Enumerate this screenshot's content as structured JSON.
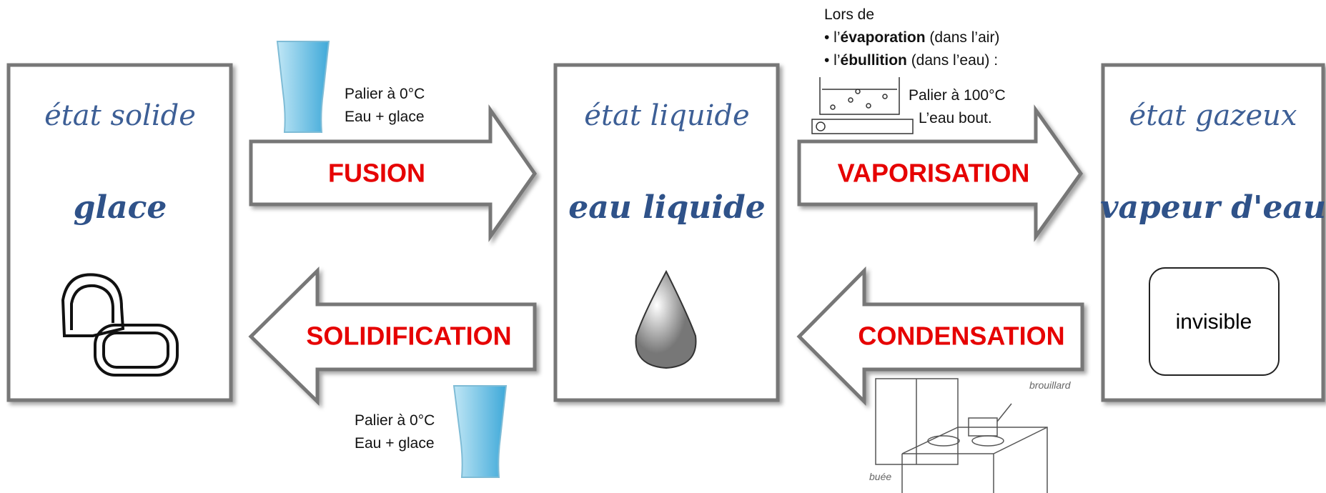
{
  "cards": [
    {
      "state": "état solide",
      "substance": "glace"
    },
    {
      "state": "état liquide",
      "substance": "eau liquide"
    },
    {
      "state": "état gazeux",
      "substance": "vapeur d'eau",
      "note": "invisible"
    }
  ],
  "arrows": [
    {
      "label": "FUSION"
    },
    {
      "label": "VAPORISATION"
    },
    {
      "label": "SOLIDIFICATION"
    },
    {
      "label": "CONDENSATION"
    }
  ],
  "notes": {
    "fusion": {
      "line1": "Palier à 0°C",
      "line2": "Eau + glace"
    },
    "solidification": {
      "line1": "Palier à 0°C",
      "line2": "Eau + glace"
    },
    "vaporisation": {
      "intro": "Lors de",
      "items": [
        {
          "prefix": "• l’",
          "bold": "évaporation",
          "rest": " (dans l’air)"
        },
        {
          "prefix": "• l’",
          "bold": "ébullition",
          "rest": " (dans l’eau) :"
        }
      ],
      "line1": "Palier à 100°C",
      "line2": "L’eau bout."
    },
    "condensation": {
      "label1": "brouillard",
      "label2": "buée"
    }
  }
}
